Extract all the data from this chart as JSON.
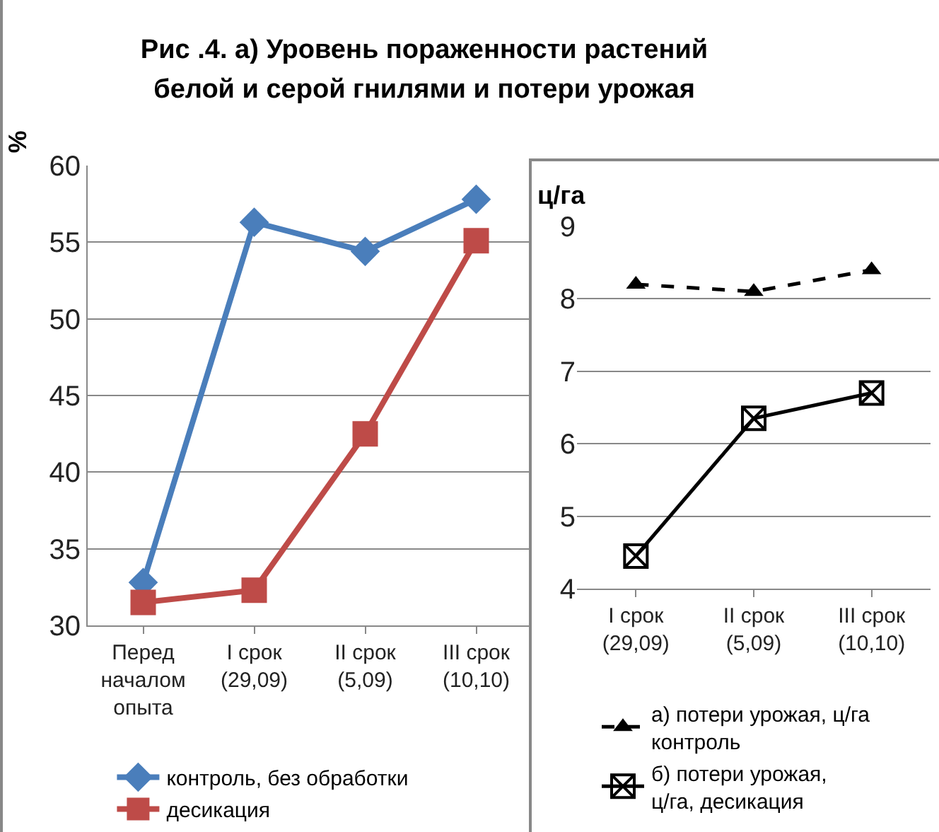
{
  "chart_data": [
    {
      "type": "line",
      "title": "Рис .4. а) Уровень пораженности растений\nбелой и серой гнилями и потери  урожая",
      "ylabel": "%",
      "categories": [
        "Перед\nначалом\nопыта",
        "I срок\n(29,09)",
        "II срок\n(5,09)",
        "III срок\n(10,10)"
      ],
      "series": [
        {
          "name": "контроль, без обработки",
          "color": "#4a7ebb",
          "marker": "diamond",
          "values": [
            32.8,
            56.3,
            54.4,
            57.8
          ]
        },
        {
          "name": "десикация",
          "color": "#be4b48",
          "marker": "square",
          "values": [
            31.5,
            32.3,
            42.5,
            55.1
          ]
        }
      ],
      "ylim": [
        30,
        60
      ],
      "yticks": [
        30,
        35,
        40,
        45,
        50,
        55,
        60
      ],
      "grid": "y",
      "legend": "bottom"
    },
    {
      "type": "line",
      "ylabel": "ц/га",
      "categories": [
        "I срок\n(29,09)",
        "II срок\n(5,09)",
        "III срок\n(10,10)"
      ],
      "series": [
        {
          "name": "а) потери урожая, ц/га\nконтроль",
          "color": "#000000",
          "marker": "triangle",
          "line_style": "dashed",
          "values": [
            8.2,
            8.1,
            8.4
          ]
        },
        {
          "name": "б) потери урожая,\nц/га, десикация",
          "color": "#000000",
          "marker": "cross",
          "line_style": "solid",
          "values": [
            4.45,
            6.35,
            6.7
          ]
        }
      ],
      "ylim": [
        4,
        9
      ],
      "yticks": [
        4,
        5,
        6,
        7,
        8,
        9
      ],
      "grid": "y",
      "legend": "bottom"
    }
  ]
}
